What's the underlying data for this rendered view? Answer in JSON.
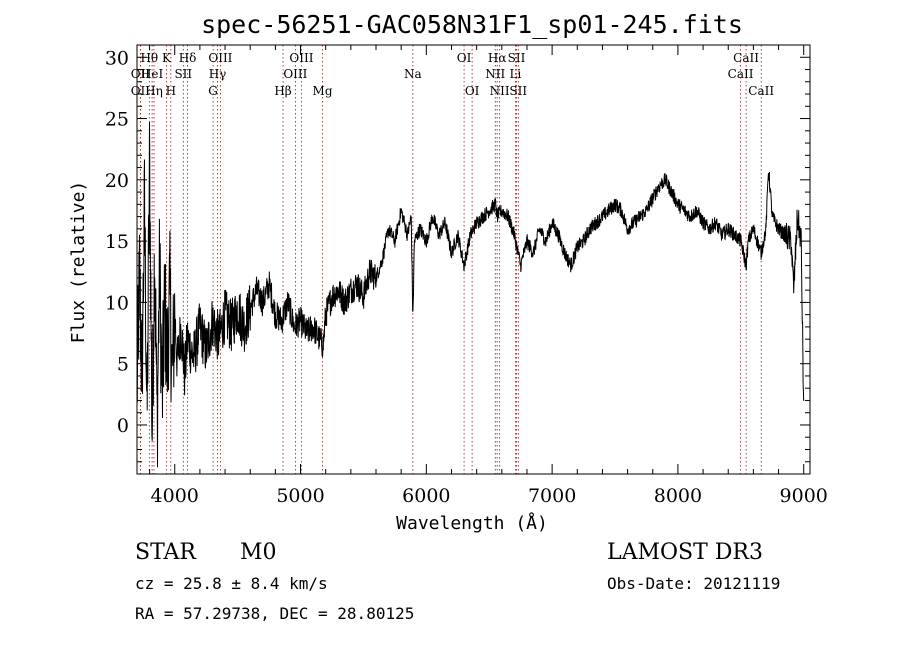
{
  "chart_data": {
    "type": "line",
    "title": "spec-56251-GAC058N31F1_sp01-245.fits",
    "xlabel": "Wavelength (Å)",
    "ylabel": "Flux (relative)",
    "xlim": [
      3700,
      9050
    ],
    "ylim": [
      -4,
      31
    ],
    "xticks": [
      4000,
      5000,
      6000,
      7000,
      8000,
      9000
    ],
    "yticks": [
      0,
      5,
      10,
      15,
      20,
      25,
      30
    ],
    "anchors": [
      [
        3700,
        3.0
      ],
      [
        3720,
        12.0
      ],
      [
        3740,
        4.0
      ],
      [
        3760,
        18.0
      ],
      [
        3780,
        0.0
      ],
      [
        3800,
        22.0
      ],
      [
        3820,
        -1.0
      ],
      [
        3840,
        15.0
      ],
      [
        3860,
        0.0
      ],
      [
        3880,
        13.0
      ],
      [
        3900,
        2.0
      ],
      [
        3920,
        10.0
      ],
      [
        3940,
        5.0
      ],
      [
        3960,
        11.0
      ],
      [
        3980,
        4.0
      ],
      [
        4000,
        9.0
      ],
      [
        4020,
        5.0
      ],
      [
        4050,
        8.0
      ],
      [
        4080,
        4.0
      ],
      [
        4100,
        7.0
      ],
      [
        4150,
        5.5
      ],
      [
        4200,
        8.0
      ],
      [
        4250,
        6.0
      ],
      [
        4300,
        8.5
      ],
      [
        4350,
        7.0
      ],
      [
        4400,
        9.0
      ],
      [
        4450,
        8.0
      ],
      [
        4500,
        9.5
      ],
      [
        4550,
        8.0
      ],
      [
        4600,
        9.5
      ],
      [
        4650,
        11.0
      ],
      [
        4700,
        10.0
      ],
      [
        4750,
        11.5
      ],
      [
        4800,
        9.0
      ],
      [
        4850,
        8.5
      ],
      [
        4900,
        10.0
      ],
      [
        4950,
        8.0
      ],
      [
        5000,
        8.5
      ],
      [
        5050,
        7.5
      ],
      [
        5100,
        8.0
      ],
      [
        5150,
        7.0
      ],
      [
        5180,
        6.5
      ],
      [
        5200,
        9.0
      ],
      [
        5250,
        10.5
      ],
      [
        5300,
        11.0
      ],
      [
        5350,
        10.0
      ],
      [
        5400,
        11.0
      ],
      [
        5450,
        11.5
      ],
      [
        5500,
        10.5
      ],
      [
        5550,
        12.5
      ],
      [
        5600,
        12.0
      ],
      [
        5650,
        13.5
      ],
      [
        5700,
        16.0
      ],
      [
        5750,
        15.0
      ],
      [
        5800,
        17.5
      ],
      [
        5850,
        15.5
      ],
      [
        5880,
        17.0
      ],
      [
        5893,
        8.5
      ],
      [
        5905,
        15.0
      ],
      [
        5950,
        16.0
      ],
      [
        6000,
        15.0
      ],
      [
        6050,
        17.0
      ],
      [
        6100,
        15.5
      ],
      [
        6150,
        16.5
      ],
      [
        6200,
        14.0
      ],
      [
        6250,
        15.5
      ],
      [
        6300,
        13.0
      ],
      [
        6350,
        15.5
      ],
      [
        6400,
        16.5
      ],
      [
        6450,
        17.0
      ],
      [
        6500,
        17.5
      ],
      [
        6550,
        18.0
      ],
      [
        6563,
        17.0
      ],
      [
        6600,
        17.5
      ],
      [
        6650,
        17.0
      ],
      [
        6700,
        15.5
      ],
      [
        6750,
        13.0
      ],
      [
        6800,
        15.0
      ],
      [
        6850,
        14.0
      ],
      [
        6900,
        16.0
      ],
      [
        6950,
        15.0
      ],
      [
        7000,
        16.5
      ],
      [
        7050,
        15.5
      ],
      [
        7100,
        14.0
      ],
      [
        7150,
        13.0
      ],
      [
        7200,
        14.5
      ],
      [
        7250,
        15.0
      ],
      [
        7300,
        16.0
      ],
      [
        7350,
        16.5
      ],
      [
        7400,
        17.0
      ],
      [
        7450,
        17.5
      ],
      [
        7500,
        18.0
      ],
      [
        7550,
        17.5
      ],
      [
        7600,
        16.0
      ],
      [
        7650,
        16.5
      ],
      [
        7700,
        17.0
      ],
      [
        7750,
        17.5
      ],
      [
        7800,
        18.5
      ],
      [
        7850,
        19.5
      ],
      [
        7900,
        20.0
      ],
      [
        7950,
        19.0
      ],
      [
        8000,
        18.0
      ],
      [
        8050,
        17.5
      ],
      [
        8100,
        17.0
      ],
      [
        8150,
        17.5
      ],
      [
        8200,
        16.5
      ],
      [
        8250,
        16.0
      ],
      [
        8300,
        16.5
      ],
      [
        8350,
        15.5
      ],
      [
        8400,
        16.0
      ],
      [
        8450,
        15.5
      ],
      [
        8500,
        15.0
      ],
      [
        8542,
        13.0
      ],
      [
        8560,
        15.0
      ],
      [
        8600,
        16.0
      ],
      [
        8662,
        14.0
      ],
      [
        8700,
        16.0
      ],
      [
        8720,
        21.0
      ],
      [
        8750,
        17.0
      ],
      [
        8800,
        16.0
      ],
      [
        8850,
        15.5
      ],
      [
        8900,
        15.0
      ],
      [
        8920,
        11.0
      ],
      [
        8950,
        17.0
      ],
      [
        8980,
        15.0
      ],
      [
        9000,
        1.0
      ]
    ],
    "lines": [
      {
        "name": "Hθ",
        "x": 3798,
        "row": 1
      },
      {
        "name": "OII",
        "x": 3727,
        "row": 2
      },
      {
        "name": "OII",
        "x": 3727,
        "row": 3
      },
      {
        "name": "HeI",
        "x": 3820,
        "row": 2
      },
      {
        "name": "Hη",
        "x": 3835,
        "row": 3
      },
      {
        "name": "K",
        "x": 3934,
        "row": 1
      },
      {
        "name": "H",
        "x": 3969,
        "row": 3
      },
      {
        "name": "SII",
        "x": 4068,
        "row": 2
      },
      {
        "name": "Hδ",
        "x": 4102,
        "row": 1
      },
      {
        "name": "OIII",
        "x": 4363,
        "row": 1
      },
      {
        "name": "Hγ",
        "x": 4340,
        "row": 2
      },
      {
        "name": "G",
        "x": 4305,
        "row": 3
      },
      {
        "name": "Hβ",
        "x": 4861,
        "row": 3
      },
      {
        "name": "OIII",
        "x": 5007,
        "row": 1
      },
      {
        "name": "OIII",
        "x": 4959,
        "row": 2
      },
      {
        "name": "Mg",
        "x": 5175,
        "row": 3
      },
      {
        "name": "Na",
        "x": 5893,
        "row": 2
      },
      {
        "name": "OI",
        "x": 6300,
        "row": 1
      },
      {
        "name": "OI",
        "x": 6364,
        "row": 3
      },
      {
        "name": "Hα",
        "x": 6563,
        "row": 1
      },
      {
        "name": "NII",
        "x": 6548,
        "row": 2
      },
      {
        "name": "NII",
        "x": 6583,
        "row": 3
      },
      {
        "name": "SII",
        "x": 6717,
        "row": 1
      },
      {
        "name": "Li",
        "x": 6708,
        "row": 2
      },
      {
        "name": "SII",
        "x": 6731,
        "row": 3
      },
      {
        "name": "CaII",
        "x": 8542,
        "row": 1
      },
      {
        "name": "CaII",
        "x": 8498,
        "row": 2
      },
      {
        "name": "CaII",
        "x": 8662,
        "row": 3
      }
    ]
  },
  "info": {
    "class": "STAR",
    "subclass": "M0",
    "survey": "LAMOST DR3",
    "redshift": "cz = 25.8 ± 8.4 km/s",
    "obs_date": "Obs-Date: 20121119",
    "coords": "RA =  57.29738, DEC =  28.80125"
  },
  "colors": {
    "line_marker": "#c00000",
    "spectrum": "#000000",
    "axes": "#000000"
  }
}
